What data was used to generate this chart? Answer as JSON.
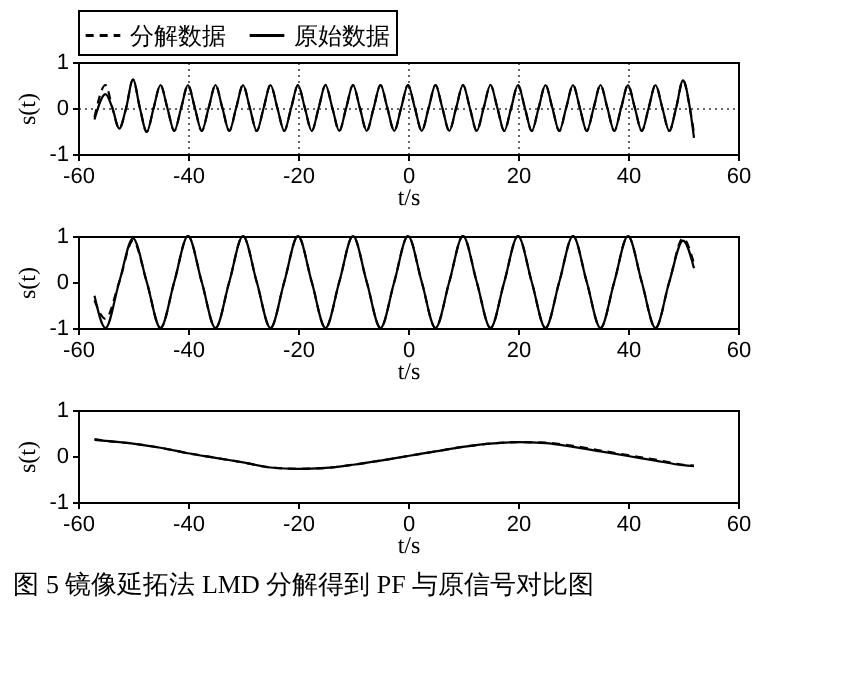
{
  "chart_data": [
    {
      "type": "line",
      "xlabel": "t/s",
      "ylabel": "s(t)",
      "legend": "top",
      "grid": true,
      "xlim": [
        -60,
        60
      ],
      "xticks": [
        -60,
        -40,
        -20,
        0,
        20,
        40,
        60
      ],
      "ylim": [
        -1,
        1
      ],
      "yticks": [
        -1,
        0,
        1
      ],
      "x": [
        -57,
        -55,
        -53.75,
        -52.5,
        -51.25,
        -50,
        -48.75,
        -47.5,
        -46.25,
        -45,
        -43.75,
        -42.5,
        -41.25,
        -40,
        -38.75,
        -37.5,
        -36.25,
        -35,
        -33.75,
        -32.5,
        -31.25,
        -30,
        -28.75,
        -27.5,
        -26.25,
        -25,
        -23.75,
        -22.5,
        -21.25,
        -20,
        -18.75,
        -17.5,
        -16.25,
        -15,
        -13.75,
        -12.5,
        -11.25,
        -10,
        -8.75,
        -7.5,
        -6.25,
        -5,
        -3.75,
        -2.5,
        -1.25,
        0,
        1.25,
        2.5,
        3.75,
        5,
        6.25,
        7.5,
        8.75,
        10,
        11.25,
        12.5,
        13.75,
        15,
        16.25,
        17.5,
        18.75,
        20,
        21.25,
        22.5,
        23.75,
        25,
        26.25,
        27.5,
        28.75,
        30,
        31.25,
        32.5,
        33.75,
        35,
        36.25,
        37.5,
        38.75,
        40,
        41.25,
        42.5,
        43.75,
        45,
        46.25,
        47.5,
        48.75,
        50,
        51.25,
        52
      ],
      "series": [
        {
          "name": "分解数据",
          "color": "#000000",
          "line_style": "dashed",
          "values": [
            -0.2,
            0.5,
            0,
            -0.45,
            0,
            0.62,
            0,
            -0.52,
            0,
            0.5,
            0,
            -0.5,
            0,
            0.5,
            0,
            -0.5,
            0,
            0.5,
            0,
            -0.5,
            0,
            0.5,
            0,
            -0.5,
            0,
            0.5,
            0,
            -0.5,
            0,
            0.5,
            0,
            -0.5,
            0,
            0.5,
            0,
            -0.5,
            0,
            0.5,
            0,
            -0.5,
            0,
            0.5,
            0,
            -0.5,
            0,
            0.5,
            0,
            -0.5,
            0,
            0.5,
            0,
            -0.5,
            0,
            0.5,
            0,
            -0.5,
            0,
            0.5,
            0,
            -0.5,
            0,
            0.5,
            0,
            -0.5,
            0,
            0.5,
            0,
            -0.5,
            0,
            0.5,
            0,
            -0.5,
            0,
            0.5,
            0,
            -0.5,
            0,
            0.5,
            0,
            -0.5,
            0,
            0.5,
            0,
            -0.5,
            0,
            0.6,
            0,
            -0.55
          ]
        },
        {
          "name": "原始数据",
          "color": "#000000",
          "line_style": "solid",
          "values": [
            -0.25,
            0.3,
            0,
            -0.45,
            0,
            0.62,
            0,
            -0.52,
            0,
            0.5,
            0,
            -0.5,
            0,
            0.5,
            0,
            -0.5,
            0,
            0.5,
            0,
            -0.5,
            0,
            0.5,
            0,
            -0.5,
            0,
            0.5,
            0,
            -0.5,
            0,
            0.5,
            0,
            -0.5,
            0,
            0.5,
            0,
            -0.5,
            0,
            0.5,
            0,
            -0.5,
            0,
            0.5,
            0,
            -0.5,
            0,
            0.5,
            0,
            -0.5,
            0,
            0.5,
            0,
            -0.5,
            0,
            0.5,
            0,
            -0.5,
            0,
            0.5,
            0,
            -0.5,
            0,
            0.5,
            0,
            -0.5,
            0,
            0.5,
            0,
            -0.5,
            0,
            0.5,
            0,
            -0.5,
            0,
            0.5,
            0,
            -0.5,
            0,
            0.5,
            0,
            -0.5,
            0,
            0.5,
            0,
            -0.5,
            0,
            0.6,
            0,
            -0.65
          ]
        }
      ]
    },
    {
      "type": "line",
      "xlabel": "t/s",
      "ylabel": "s(t)",
      "xlim": [
        -60,
        60
      ],
      "xticks": [
        -60,
        -40,
        -20,
        0,
        20,
        40,
        60
      ],
      "ylim": [
        -1,
        1
      ],
      "yticks": [
        -1,
        0,
        1
      ],
      "x": [
        -57,
        -55,
        -52.5,
        -50,
        -47.5,
        -45,
        -42.5,
        -40,
        -37.5,
        -35,
        -32.5,
        -30,
        -27.5,
        -25,
        -22.5,
        -20,
        -17.5,
        -15,
        -12.5,
        -10,
        -7.5,
        -5,
        -2.5,
        0,
        2.5,
        5,
        7.5,
        10,
        12.5,
        15,
        17.5,
        20,
        22.5,
        25,
        27.5,
        30,
        32.5,
        35,
        37.5,
        40,
        42.5,
        45,
        47.5,
        50,
        52
      ],
      "series": [
        {
          "color": "#000000",
          "line_style": "dashed",
          "values": [
            -0.4,
            -0.8,
            0,
            0.9,
            0,
            -1,
            0,
            1,
            0,
            -1,
            0,
            1,
            0,
            -1,
            0,
            1,
            0,
            -1,
            0,
            1,
            0,
            -1,
            0,
            1,
            0,
            -1,
            0,
            1,
            0,
            -1,
            0,
            1,
            0,
            -1,
            0,
            1,
            0,
            -1,
            0,
            1,
            0,
            -1,
            0,
            0.95,
            0.4
          ]
        },
        {
          "color": "#000000",
          "line_style": "solid",
          "values": [
            -0.3,
            -1,
            0,
            0.95,
            0,
            -1,
            0,
            1,
            0,
            -1,
            0,
            1,
            0,
            -1,
            0,
            1,
            0,
            -1,
            0,
            1,
            0,
            -1,
            0,
            1,
            0,
            -1,
            0,
            1,
            0,
            -1,
            0,
            1,
            0,
            -1,
            0,
            1,
            0,
            -1,
            0,
            1,
            0,
            -1,
            0,
            0.9,
            0.3
          ]
        }
      ]
    },
    {
      "type": "line",
      "xlabel": "t/s",
      "ylabel": "s(t)",
      "xlim": [
        -60,
        60
      ],
      "xticks": [
        -60,
        -40,
        -20,
        0,
        20,
        40,
        60
      ],
      "ylim": [
        -1,
        1
      ],
      "yticks": [
        -1,
        0,
        1
      ],
      "annotations": [
        "图 5  镜像延拓法 LMD 分解得到 PF 与原信号对比图"
      ],
      "x": [
        -57,
        -55,
        -50,
        -45,
        -40,
        -35,
        -30,
        -25,
        -20,
        -15,
        -10,
        -5,
        0,
        5,
        10,
        15,
        20,
        25,
        30,
        35,
        40,
        45,
        50,
        52
      ],
      "series": [
        {
          "color": "#000000",
          "line_style": "dashed",
          "values": [
            0.37,
            0.33,
            0.27,
            0.18,
            0.06,
            -0.04,
            -0.14,
            -0.25,
            -0.28,
            -0.26,
            -0.19,
            -0.1,
            0,
            0.1,
            0.2,
            0.27,
            0.3,
            0.29,
            0.22,
            0.12,
            0.02,
            -0.08,
            -0.19,
            -0.21
          ]
        },
        {
          "color": "#000000",
          "line_style": "solid",
          "values": [
            0.35,
            0.33,
            0.27,
            0.18,
            0.06,
            -0.04,
            -0.14,
            -0.25,
            -0.28,
            -0.26,
            -0.19,
            -0.1,
            0,
            0.1,
            0.2,
            0.27,
            0.3,
            0.28,
            0.2,
            0.1,
            0,
            -0.1,
            -0.2,
            -0.22
          ]
        }
      ]
    }
  ]
}
